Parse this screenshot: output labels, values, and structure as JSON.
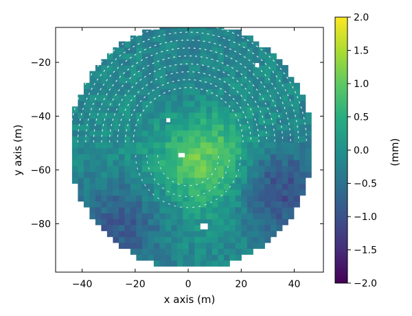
{
  "chart_data": {
    "type": "heatmap",
    "title": "",
    "xlabel": "x axis (m)",
    "ylabel": "y axis (m)",
    "xlim": [
      -50,
      51
    ],
    "ylim": [
      -98,
      -7
    ],
    "x_ticks": [
      -40,
      -20,
      0,
      20,
      40
    ],
    "x_tick_labels": [
      "−40",
      "−20",
      "0",
      "20",
      "40"
    ],
    "y_ticks": [
      -20,
      -40,
      -60,
      -80
    ],
    "y_tick_labels": [
      "−20",
      "−40",
      "−60",
      "−80"
    ],
    "colorbar": {
      "label": "(mm)",
      "colormap": "viridis",
      "range": [
        -2.0,
        2.0
      ],
      "ticks": [
        2.0,
        1.5,
        1.0,
        0.5,
        0.0,
        -0.5,
        -1.0,
        -1.5,
        -2.0
      ],
      "tick_labels": [
        "2.0",
        "1.5",
        "1.0",
        "0.5",
        "0.0",
        "−0.5",
        "−1.0",
        "−1.5",
        "−2.0"
      ]
    },
    "surface": {
      "shape": "circular dish",
      "center": [
        0,
        -52
      ],
      "radius": 46,
      "description": "surface deviation map",
      "features": [
        {
          "name": "central bump",
          "x": 5,
          "y": -56,
          "value": 1.2
        },
        {
          "name": "left low region",
          "x": -25,
          "y": -80,
          "value": -0.8
        },
        {
          "name": "right low region",
          "x": 32,
          "y": -68,
          "value": -1.0
        },
        {
          "name": "top band",
          "x": 0,
          "y": -40,
          "value": -0.4
        }
      ]
    },
    "grid": false
  }
}
